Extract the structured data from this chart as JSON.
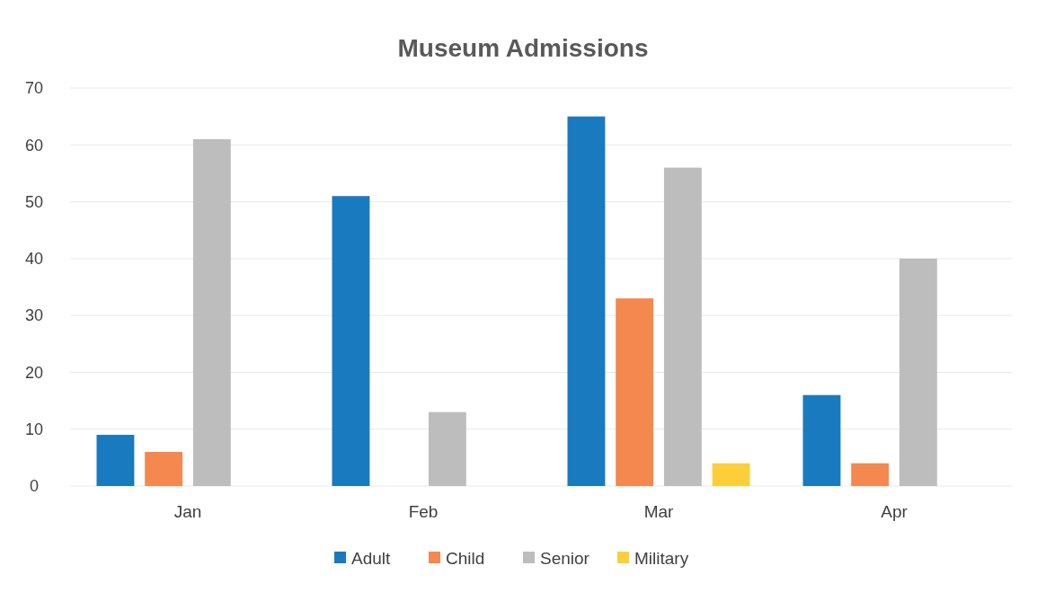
{
  "chart_data": {
    "type": "bar",
    "title": "Museum Admissions",
    "categories": [
      "Jan",
      "Feb",
      "Mar",
      "Apr"
    ],
    "series": [
      {
        "name": "Adult",
        "color": "#1a7abf",
        "values": [
          9,
          51,
          65,
          16
        ]
      },
      {
        "name": "Child",
        "color": "#f5884f",
        "values": [
          6,
          0,
          33,
          4
        ]
      },
      {
        "name": "Senior",
        "color": "#bdbdbd",
        "values": [
          61,
          13,
          56,
          40
        ]
      },
      {
        "name": "Military",
        "color": "#fccf3a",
        "values": [
          0,
          0,
          4,
          0
        ]
      }
    ],
    "ylim": [
      0,
      70
    ],
    "yticks": [
      0,
      10,
      20,
      30,
      40,
      50,
      60,
      70
    ],
    "grid": "y",
    "legend": "bottom"
  }
}
